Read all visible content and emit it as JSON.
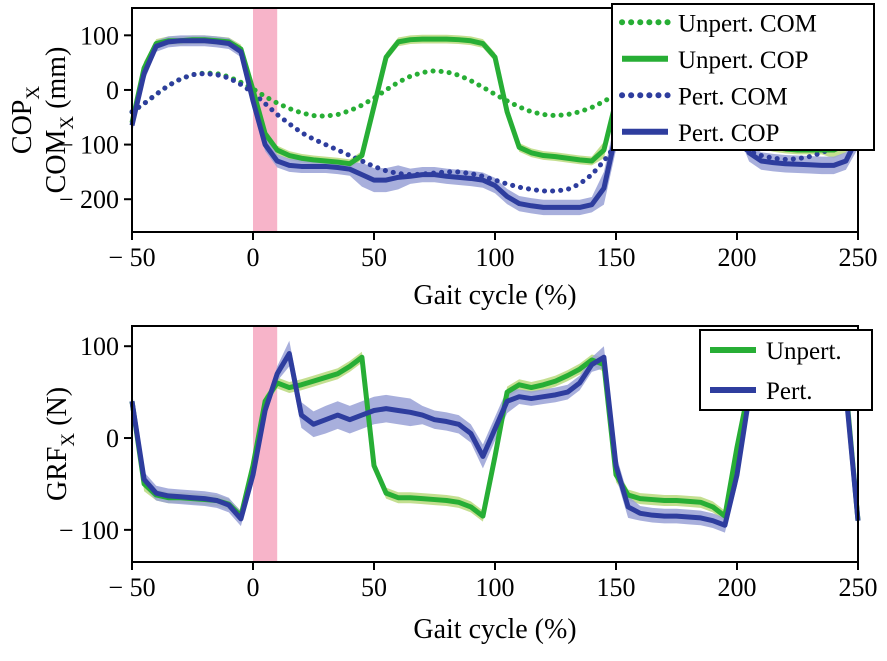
{
  "figure": {
    "background": "#ffffff"
  },
  "chart_data": [
    {
      "name": "cop-com",
      "type": "line",
      "xlabel": "Gait cycle (%)",
      "ylabel_lines": [
        {
          "text": "COP",
          "sub": "X",
          "rest": ""
        },
        {
          "text": "COM",
          "sub": "X",
          "rest": "(mm)"
        }
      ],
      "xlim": [
        -50,
        250
      ],
      "ylim": [
        -260,
        150
      ],
      "xticks": [
        -50,
        0,
        50,
        100,
        150,
        200,
        250
      ],
      "xtick_labels": [
        "− 50",
        "0",
        "50",
        "100",
        "150",
        "200",
        "250"
      ],
      "yticks": [
        100,
        0,
        -100,
        -200
      ],
      "ytick_labels": [
        "100",
        "0",
        "− 100",
        "− 200"
      ],
      "perturbation_window": {
        "x0": 0,
        "x1": 10,
        "color": "#ef6a93",
        "opacity": 0.5
      },
      "x": [
        -50,
        -45,
        -40,
        -35,
        -30,
        -25,
        -20,
        -15,
        -10,
        -5,
        0,
        5,
        10,
        15,
        20,
        25,
        30,
        35,
        40,
        45,
        50,
        55,
        60,
        65,
        70,
        75,
        80,
        85,
        90,
        95,
        100,
        105,
        110,
        115,
        120,
        125,
        130,
        135,
        140,
        145,
        150,
        155,
        160,
        165,
        170,
        175,
        180,
        185,
        190,
        195,
        200,
        205,
        210,
        215,
        220,
        225,
        230,
        235,
        240,
        245,
        250
      ],
      "series": [
        {
          "name": "Unpert. COM",
          "style": "dotted",
          "color": "#27ae35",
          "width": 5,
          "values": [
            -40,
            -25,
            -8,
            8,
            20,
            28,
            31,
            30,
            24,
            14,
            2,
            -12,
            -24,
            -34,
            -42,
            -47,
            -48,
            -45,
            -38,
            -28,
            -15,
            0,
            14,
            25,
            32,
            35,
            33,
            27,
            17,
            5,
            -8,
            -20,
            -31,
            -40,
            -45,
            -47,
            -45,
            -40,
            -32,
            -21,
            -8,
            5,
            17,
            26,
            32,
            34,
            32,
            26,
            16,
            4,
            -9,
            -21,
            -32,
            -40,
            -45,
            -47,
            -45,
            -40,
            -32,
            -21,
            -8
          ]
        },
        {
          "name": "Pert. COM",
          "style": "dotted",
          "color": "#2e3d9e",
          "width": 5,
          "values": [
            -40,
            -25,
            -8,
            8,
            20,
            28,
            30,
            28,
            22,
            10,
            -5,
            -25,
            -45,
            -62,
            -78,
            -90,
            -100,
            -110,
            -120,
            -130,
            -140,
            -148,
            -153,
            -155,
            -154,
            -152,
            -150,
            -150,
            -153,
            -158,
            -165,
            -172,
            -178,
            -182,
            -185,
            -185,
            -182,
            -172,
            -155,
            -130,
            -100,
            -70,
            -45,
            -30,
            -25,
            -28,
            -38,
            -52,
            -68,
            -85,
            -100,
            -112,
            -120,
            -125,
            -127,
            -126,
            -122,
            -115,
            -105,
            -92,
            -78
          ]
        },
        {
          "name": "Unpert. COP",
          "style": "solid",
          "color": "#27ae35",
          "width": 5,
          "band_color": "#bedc84",
          "band_opacity": 0.9,
          "band": [
            12,
            12,
            8,
            8,
            8,
            8,
            8,
            8,
            8,
            8,
            8,
            8,
            8,
            8,
            8,
            8,
            8,
            8,
            8,
            8,
            8,
            8,
            8,
            8,
            8,
            8,
            8,
            8,
            8,
            8,
            8,
            8,
            8,
            8,
            8,
            8,
            8,
            8,
            8,
            15,
            15,
            15,
            15,
            8,
            8,
            8,
            8,
            8,
            8,
            8,
            8,
            8,
            8,
            8,
            8,
            8,
            8,
            8,
            15,
            15,
            15
          ],
          "values": [
            -60,
            40,
            85,
            90,
            90,
            92,
            92,
            90,
            88,
            75,
            0,
            -80,
            -110,
            -120,
            -125,
            -128,
            -130,
            -132,
            -135,
            -120,
            -30,
            60,
            88,
            92,
            93,
            93,
            93,
            92,
            90,
            85,
            60,
            -40,
            -105,
            -115,
            -120,
            -122,
            -125,
            -128,
            -130,
            -110,
            -20,
            60,
            88,
            92,
            93,
            93,
            93,
            92,
            90,
            80,
            30,
            -60,
            -100,
            -105,
            -108,
            -110,
            -110,
            -110,
            -110,
            -100,
            -75
          ]
        },
        {
          "name": "Pert. COP",
          "style": "solid",
          "color": "#2e3d9e",
          "width": 5,
          "band_color": "#99a1d6",
          "band_opacity": 0.85,
          "band": [
            14,
            14,
            10,
            10,
            10,
            10,
            10,
            10,
            10,
            10,
            12,
            12,
            12,
            12,
            12,
            12,
            12,
            12,
            12,
            22,
            22,
            22,
            22,
            14,
            14,
            14,
            14,
            14,
            14,
            14,
            14,
            14,
            14,
            14,
            14,
            14,
            14,
            14,
            14,
            30,
            30,
            30,
            30,
            20,
            20,
            20,
            20,
            20,
            20,
            20,
            16,
            16,
            16,
            16,
            16,
            16,
            16,
            16,
            16,
            16,
            22
          ],
          "values": [
            -65,
            30,
            80,
            88,
            90,
            90,
            90,
            88,
            85,
            70,
            -20,
            -100,
            -130,
            -138,
            -140,
            -140,
            -140,
            -142,
            -145,
            -155,
            -165,
            -165,
            -160,
            -158,
            -155,
            -155,
            -158,
            -160,
            -162,
            -165,
            -175,
            -195,
            -208,
            -212,
            -215,
            -215,
            -215,
            -215,
            -210,
            -180,
            -80,
            30,
            60,
            70,
            72,
            70,
            65,
            55,
            40,
            10,
            -60,
            -115,
            -130,
            -133,
            -135,
            -136,
            -137,
            -138,
            -138,
            -130,
            -85
          ]
        }
      ],
      "legend": {
        "position": "top-right",
        "entries": [
          {
            "label": "Unpert. COM",
            "style": "dotted",
            "color": "#27ae35"
          },
          {
            "label": "Unpert. COP",
            "style": "solid",
            "color": "#27ae35"
          },
          {
            "label": "Pert. COM",
            "style": "dotted",
            "color": "#2e3d9e"
          },
          {
            "label": "Pert. COP",
            "style": "solid",
            "color": "#2e3d9e"
          }
        ]
      }
    },
    {
      "name": "grf",
      "type": "line",
      "xlabel": "Gait cycle (%)",
      "ylabel_lines": [
        {
          "text": "GRF",
          "sub": "X",
          "rest": "(N)"
        }
      ],
      "xlim": [
        -50,
        250
      ],
      "ylim": [
        -135,
        122
      ],
      "xticks": [
        -50,
        0,
        50,
        100,
        150,
        200,
        250
      ],
      "xtick_labels": [
        "− 50",
        "0",
        "50",
        "100",
        "150",
        "200",
        "250"
      ],
      "yticks": [
        100,
        0,
        -100
      ],
      "ytick_labels": [
        "100",
        "0",
        "− 100"
      ],
      "perturbation_window": {
        "x0": 0,
        "x1": 10,
        "color": "#ef6a93",
        "opacity": 0.5
      },
      "x": [
        -50,
        -45,
        -40,
        -35,
        -30,
        -25,
        -20,
        -15,
        -10,
        -5,
        0,
        5,
        10,
        15,
        20,
        25,
        30,
        35,
        40,
        45,
        50,
        55,
        60,
        65,
        70,
        75,
        80,
        85,
        90,
        95,
        100,
        105,
        110,
        115,
        120,
        125,
        130,
        135,
        140,
        145,
        150,
        155,
        160,
        165,
        170,
        175,
        180,
        185,
        190,
        195,
        200,
        205,
        210,
        215,
        220,
        225,
        230,
        235,
        240,
        245,
        250
      ],
      "series": [
        {
          "name": "Unpert.",
          "style": "solid",
          "color": "#27ae35",
          "width": 5,
          "band_color": "#bedc84",
          "band_opacity": 0.9,
          "band": [
            10,
            8,
            6,
            6,
            6,
            6,
            6,
            6,
            6,
            6,
            6,
            6,
            6,
            6,
            6,
            6,
            6,
            6,
            6,
            6,
            6,
            6,
            6,
            6,
            6,
            6,
            6,
            6,
            6,
            6,
            6,
            6,
            6,
            6,
            6,
            6,
            6,
            6,
            6,
            8,
            8,
            6,
            6,
            6,
            6,
            6,
            6,
            6,
            6,
            6,
            6,
            6,
            6,
            6,
            6,
            6,
            6,
            6,
            6,
            6,
            12
          ],
          "values": [
            40,
            -50,
            -62,
            -65,
            -65,
            -66,
            -67,
            -68,
            -72,
            -85,
            -30,
            40,
            60,
            55,
            58,
            62,
            66,
            70,
            78,
            88,
            -30,
            -60,
            -65,
            -65,
            -66,
            -67,
            -68,
            -70,
            -75,
            -85,
            -20,
            50,
            58,
            55,
            58,
            62,
            68,
            75,
            85,
            80,
            -40,
            -62,
            -66,
            -67,
            -68,
            -68,
            -69,
            -70,
            -75,
            -85,
            -10,
            55,
            62,
            60,
            60,
            62,
            63,
            63,
            62,
            55,
            -90
          ]
        },
        {
          "name": "Pert.",
          "style": "solid",
          "color": "#2e3d9e",
          "width": 5,
          "band_color": "#99a1d6",
          "band_opacity": 0.85,
          "band": [
            10,
            8,
            8,
            8,
            8,
            8,
            8,
            8,
            8,
            8,
            8,
            8,
            8,
            14,
            14,
            14,
            15,
            15,
            15,
            15,
            15,
            15,
            15,
            15,
            10,
            10,
            10,
            10,
            10,
            13,
            13,
            13,
            8,
            8,
            8,
            8,
            8,
            8,
            8,
            12,
            12,
            12,
            8,
            8,
            8,
            8,
            8,
            8,
            8,
            8,
            12,
            12,
            8,
            8,
            8,
            8,
            8,
            8,
            8,
            8,
            15
          ],
          "values": [
            40,
            -45,
            -60,
            -63,
            -64,
            -65,
            -66,
            -68,
            -73,
            -88,
            -40,
            30,
            70,
            92,
            25,
            15,
            20,
            25,
            20,
            25,
            30,
            32,
            30,
            28,
            25,
            20,
            18,
            15,
            5,
            -20,
            10,
            40,
            45,
            43,
            45,
            47,
            50,
            60,
            80,
            88,
            -30,
            -75,
            -82,
            -84,
            -85,
            -85,
            -86,
            -87,
            -90,
            -95,
            -40,
            45,
            55,
            55,
            56,
            57,
            57,
            57,
            56,
            50,
            -90
          ]
        }
      ],
      "legend": {
        "position": "top-right",
        "entries": [
          {
            "label": "Unpert.",
            "style": "solid",
            "color": "#27ae35"
          },
          {
            "label": "Pert.",
            "style": "solid",
            "color": "#2e3d9e"
          }
        ]
      }
    }
  ]
}
